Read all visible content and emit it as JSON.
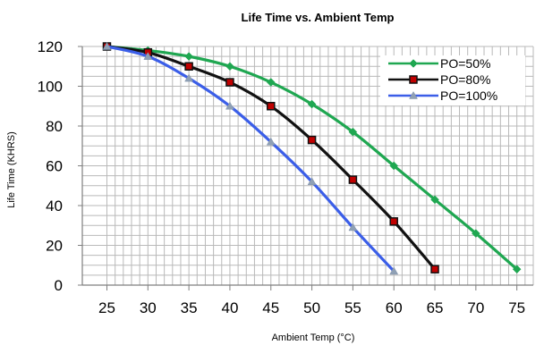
{
  "chart_data": {
    "type": "line",
    "title": "Life Time vs. Ambient Temp",
    "xlabel": "Ambient Temp (°C)",
    "ylabel": "Life Time (KHRS)",
    "xlim": [
      22,
      77
    ],
    "ylim": [
      0,
      120
    ],
    "x_ticks": [
      25,
      30,
      35,
      40,
      45,
      50,
      55,
      60,
      65,
      70,
      75
    ],
    "y_ticks": [
      0,
      20,
      40,
      60,
      80,
      100,
      120
    ],
    "grid": true,
    "legend_position": "top-right",
    "series": [
      {
        "name": "PO=50%",
        "color": "#1fa751",
        "marker": "diamond",
        "points": [
          [
            25,
            120
          ],
          [
            30,
            118
          ],
          [
            35,
            115
          ],
          [
            40,
            110
          ],
          [
            45,
            102
          ],
          [
            50,
            91
          ],
          [
            55,
            77
          ],
          [
            60,
            60
          ],
          [
            65,
            43
          ],
          [
            70,
            26
          ],
          [
            75,
            8
          ]
        ]
      },
      {
        "name": "PO=80%",
        "color": "#111111",
        "marker": "square",
        "points": [
          [
            25,
            120
          ],
          [
            30,
            117
          ],
          [
            35,
            110
          ],
          [
            40,
            102
          ],
          [
            45,
            90
          ],
          [
            50,
            73
          ],
          [
            55,
            53
          ],
          [
            60,
            32
          ],
          [
            65,
            8
          ]
        ]
      },
      {
        "name": "PO=100%",
        "color": "#3b5ee8",
        "marker": "triangle",
        "points": [
          [
            25,
            120
          ],
          [
            30,
            115
          ],
          [
            35,
            104
          ],
          [
            40,
            90
          ],
          [
            45,
            72
          ],
          [
            50,
            52
          ],
          [
            55,
            29
          ],
          [
            60,
            7
          ]
        ]
      }
    ]
  }
}
